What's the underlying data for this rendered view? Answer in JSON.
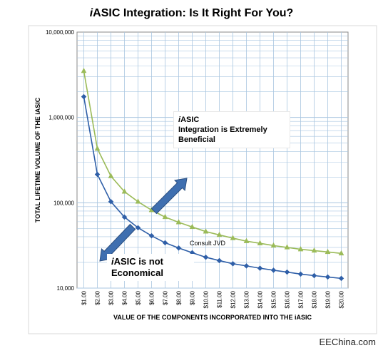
{
  "title": {
    "prefix": "i",
    "rest": "ASIC Integration:  Is It Right For You?"
  },
  "watermark": "EEChina.com",
  "annotations": {
    "beneficial_prefix": "i",
    "beneficial_line1": "ASIC",
    "beneficial_line2": "Integration is Extremely Beneficial",
    "not_prefix": "i",
    "not_line1": "ASIC is not",
    "not_line2": "Economical",
    "consult": "Consult JVD"
  },
  "colors": {
    "upper_series": "#9bbb59",
    "lower_series": "#2f5fa8",
    "grid": "#a9c6e0",
    "arrow": "#3f6fb0"
  },
  "chart_data": {
    "type": "line",
    "xlabel": "VALUE OF THE COMPONENTS INCORPORATED INTO THE iASIC",
    "ylabel": "TOTAL  LIFETIME  VOLUME  OF  THE  iASIC",
    "y_scale": "log",
    "ylim": [
      10000,
      10000000
    ],
    "y_ticks": [
      "10,000",
      "100,000",
      "1,000,000",
      "10,000,000"
    ],
    "categories": [
      "$1.00",
      "$2.00",
      "$3.00",
      "$4.00",
      "$5.00",
      "$6.00",
      "$7.00",
      "$8.00",
      "$9.00",
      "$10.00",
      "$11.00",
      "$12.00",
      "$13.00",
      "$14.00",
      "$15.00",
      "$16.00",
      "$17.00",
      "$18.00",
      "$19.00",
      "$20.00"
    ],
    "series": [
      {
        "values": [
          3500000,
          430000,
          205000,
          135000,
          103000,
          82000,
          68000,
          59000,
          52000,
          46000,
          42000,
          38500,
          35500,
          33500,
          31500,
          30000,
          28500,
          27500,
          26500,
          25500
        ]
      },
      {
        "values": [
          1750000,
          215000,
          103000,
          68000,
          51000,
          41000,
          34000,
          29500,
          26000,
          23000,
          21000,
          19300,
          18200,
          17100,
          16200,
          15400,
          14600,
          14000,
          13500,
          13000
        ]
      }
    ],
    "grid": true,
    "legend": "none"
  }
}
